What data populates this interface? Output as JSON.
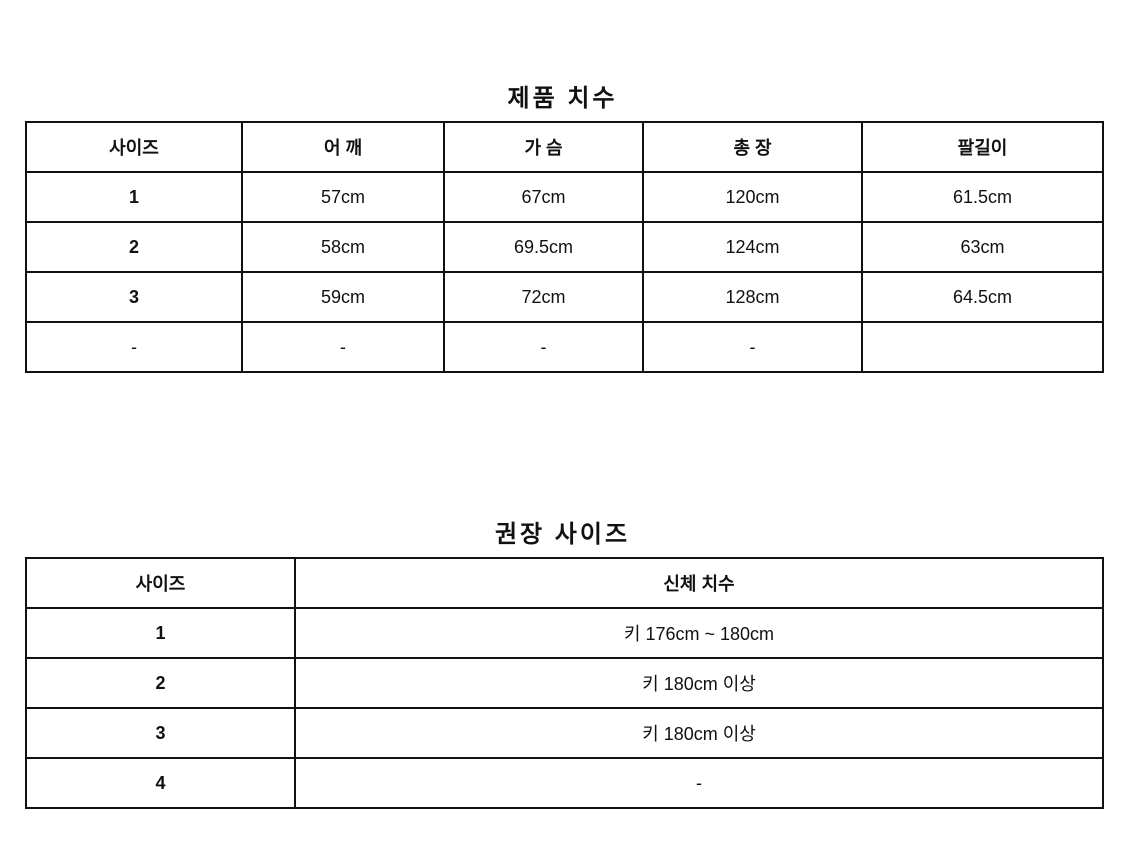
{
  "product_table": {
    "title": "제품 치수",
    "headers": [
      "사이즈",
      "어 깨",
      "가 슴",
      "총 장",
      "팔길이"
    ],
    "rows": [
      [
        "1",
        "57cm",
        "67cm",
        "120cm",
        "61.5cm"
      ],
      [
        "2",
        "58cm",
        "69.5cm",
        "124cm",
        "63cm"
      ],
      [
        "3",
        "59cm",
        "72cm",
        "128cm",
        "64.5cm"
      ],
      [
        "-",
        "-",
        "-",
        "-",
        ""
      ]
    ]
  },
  "recommend_table": {
    "title": "권장 사이즈",
    "headers": [
      "사이즈",
      "신체 치수"
    ],
    "rows": [
      [
        "1",
        "키 176cm ~ 180cm"
      ],
      [
        "2",
        "키 180cm 이상"
      ],
      [
        "3",
        "키 180cm 이상"
      ],
      [
        "4",
        "-"
      ]
    ]
  }
}
